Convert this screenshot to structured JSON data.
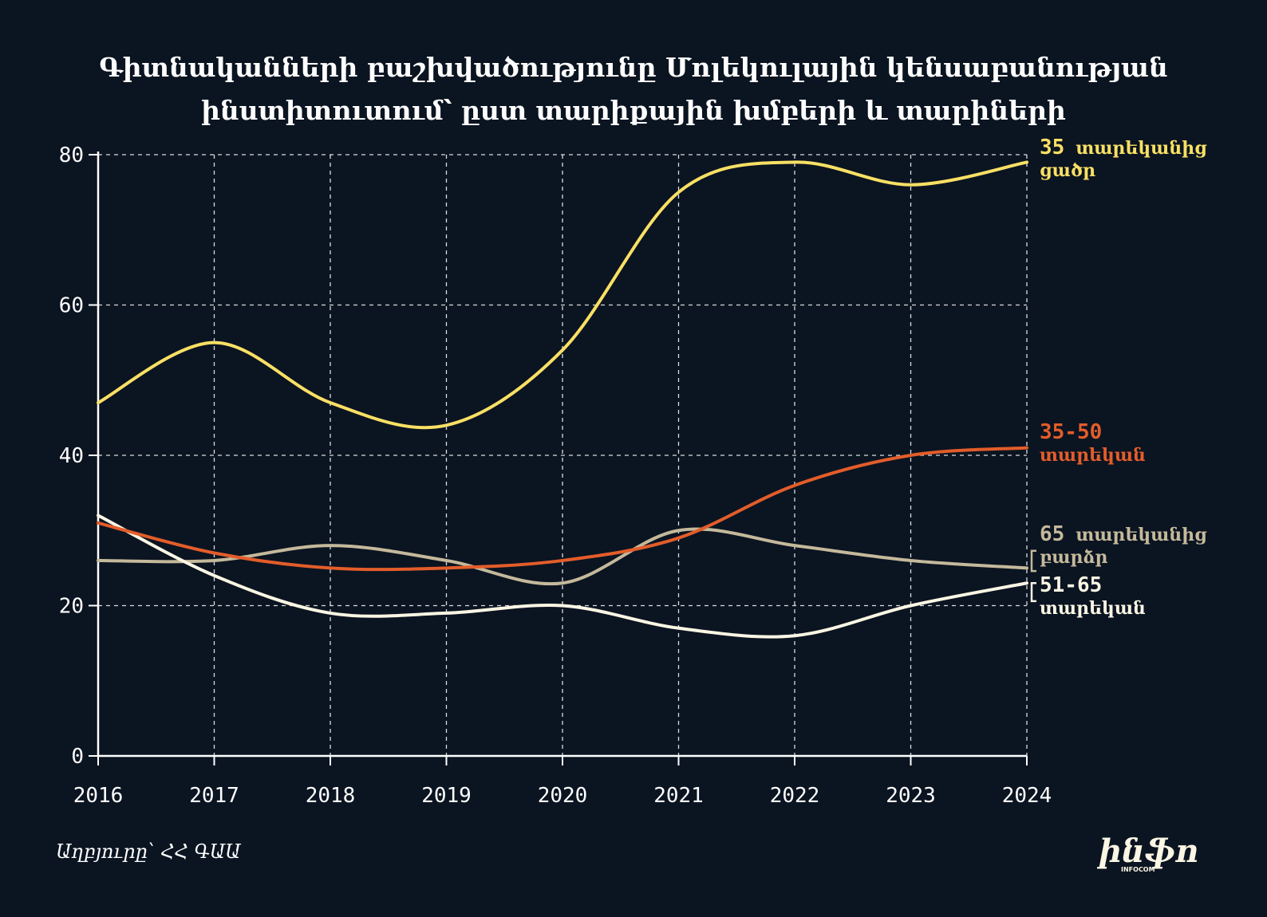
{
  "chart_data": {
    "type": "line",
    "title": "Գիտնականների բաշխվածությունը Մոլեկուլային կենսաբանության ինստիտուտում՝ ըստ տարիքային խմբերի և տարիների",
    "title_lines": [
      "Գիտնականների բաշխվածությունը Մոլեկուլային կենսաբանության",
      "ինստիտուտում՝ ըստ տարիքային խմբերի և տարիների"
    ],
    "xlabel": "",
    "ylabel": "",
    "x": [
      2016,
      2017,
      2018,
      2019,
      2020,
      2021,
      2022,
      2023,
      2024
    ],
    "xlim": [
      2016,
      2024
    ],
    "ylim": [
      0,
      80
    ],
    "y_ticks": [
      0,
      20,
      40,
      60,
      80
    ],
    "grid": true,
    "legend": "inline-right",
    "series": [
      {
        "name_num": "35",
        "name_lines": [
          "տարեկանից",
          "ցածր"
        ],
        "color": "#f9e064",
        "values": [
          47,
          55,
          47,
          44,
          54,
          75,
          79,
          76,
          79
        ]
      },
      {
        "name_num": "35-50",
        "name_lines": [
          "տարեկան"
        ],
        "color": "#e35d2a",
        "values": [
          31,
          27,
          25,
          25,
          26,
          29,
          36,
          40,
          41
        ]
      },
      {
        "name_num": "65",
        "name_lines": [
          "տարեկանից",
          "բարձր"
        ],
        "color": "#c4b99b",
        "values": [
          26,
          26,
          28,
          26,
          23,
          30,
          28,
          26,
          25
        ]
      },
      {
        "name_num": "51-65",
        "name_lines": [
          "տարեկան"
        ],
        "color": "#fbf6e4",
        "values": [
          32,
          24,
          19,
          19,
          20,
          17,
          16,
          20,
          23
        ]
      }
    ]
  },
  "source": "Աղբյուրը՝ ՀՀ ԳԱԱ",
  "logo": {
    "text": "ինֆո",
    "subtext": "INFOCOM",
    "color": "#fbf6e4"
  },
  "colors": {
    "background": "#0b1421",
    "axis": "#ffffff",
    "grid": "#ffffff"
  }
}
